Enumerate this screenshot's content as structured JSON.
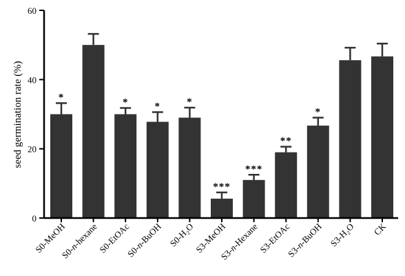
{
  "chart_data": {
    "type": "bar",
    "title": "",
    "xlabel": "",
    "ylabel": "seed germination rate (%)",
    "ylim": [
      0,
      60
    ],
    "yticks": [
      0,
      20,
      40,
      60
    ],
    "grid": false,
    "bar_color": "#333333",
    "categories": [
      {
        "pre": "S0-",
        "it": "",
        "post": "MeOH"
      },
      {
        "pre": "S0-",
        "it": "n",
        "post": "-hexane"
      },
      {
        "pre": "S0-",
        "it": "",
        "post": "EtOAc"
      },
      {
        "pre": "S0-",
        "it": "n",
        "post": "-BuOH"
      },
      {
        "pre": "S0-",
        "it": "",
        "post": "H₂O"
      },
      {
        "pre": "S3-",
        "it": "",
        "post": "MeOH"
      },
      {
        "pre": "S3-",
        "it": "n",
        "post": "-Hexane"
      },
      {
        "pre": "S3-",
        "it": "",
        "post": "EtOAc"
      },
      {
        "pre": "S3-",
        "it": "n",
        "post": "-BuOH"
      },
      {
        "pre": "S3-",
        "it": "",
        "post": "H₂O"
      },
      {
        "pre": "",
        "it": "",
        "post": "CK"
      }
    ],
    "values": [
      30,
      50,
      30,
      27.8,
      29,
      5.6,
      11,
      19,
      26.7,
      45.6,
      46.7
    ],
    "errors": [
      3.2,
      3.2,
      1.8,
      2.8,
      2.9,
      1.8,
      1.5,
      1.6,
      2.3,
      3.6,
      3.7
    ],
    "significance": [
      "*",
      "",
      "*",
      "*",
      "*",
      "***",
      "***",
      "**",
      "*",
      "",
      ""
    ]
  }
}
